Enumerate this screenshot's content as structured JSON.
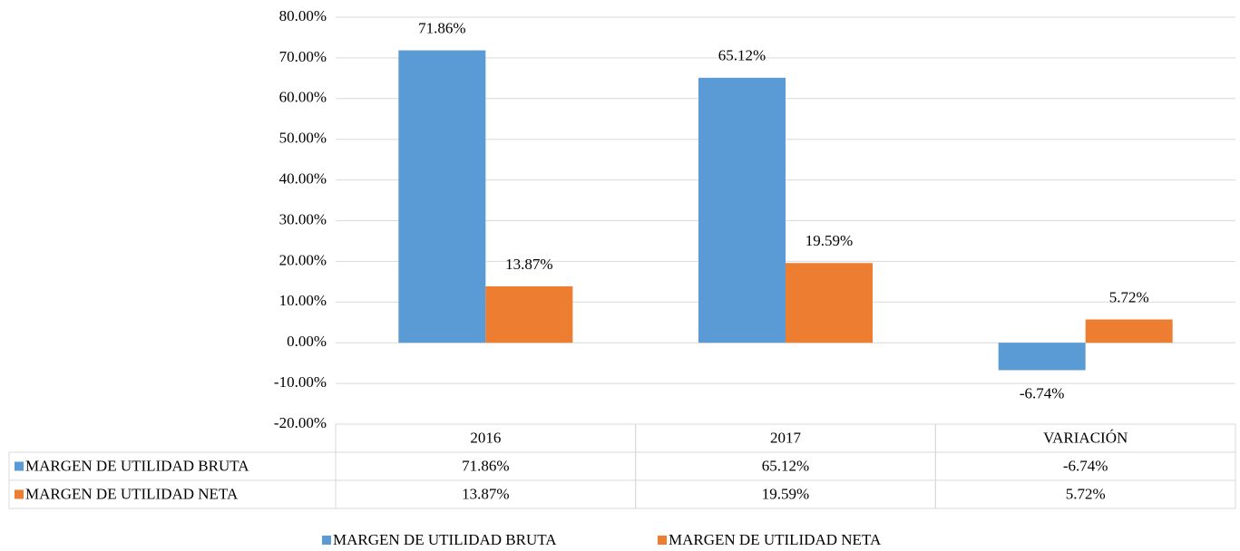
{
  "chart_data": {
    "type": "bar",
    "categories": [
      "2016",
      "2017",
      "VARIACIÓN"
    ],
    "series": [
      {
        "name": "MARGEN DE UTILIDAD BRUTA",
        "color": "#5b9bd5",
        "values": [
          71.86,
          65.12,
          -6.74
        ],
        "value_labels": [
          "71.86%",
          "65.12%",
          "-6.74%"
        ]
      },
      {
        "name": "MARGEN DE UTILIDAD NETA",
        "color": "#ed7d31",
        "values": [
          13.87,
          19.59,
          5.72
        ],
        "value_labels": [
          "13.87%",
          "19.59%",
          "5.72%"
        ]
      }
    ],
    "ylim": [
      -20,
      80
    ],
    "yticks": [
      {
        "value": -20,
        "label": "-20.00%"
      },
      {
        "value": -10,
        "label": "-10.00%"
      },
      {
        "value": 0,
        "label": "0.00%"
      },
      {
        "value": 10,
        "label": "10.00%"
      },
      {
        "value": 20,
        "label": "20.00%"
      },
      {
        "value": 30,
        "label": "30.00%"
      },
      {
        "value": 40,
        "label": "40.00%"
      },
      {
        "value": 50,
        "label": "50.00%"
      },
      {
        "value": 60,
        "label": "60.00%"
      },
      {
        "value": 70,
        "label": "70.00%"
      },
      {
        "value": 80,
        "label": "80.00%"
      }
    ],
    "grid": true,
    "legend": "bottom",
    "data_table": true
  }
}
